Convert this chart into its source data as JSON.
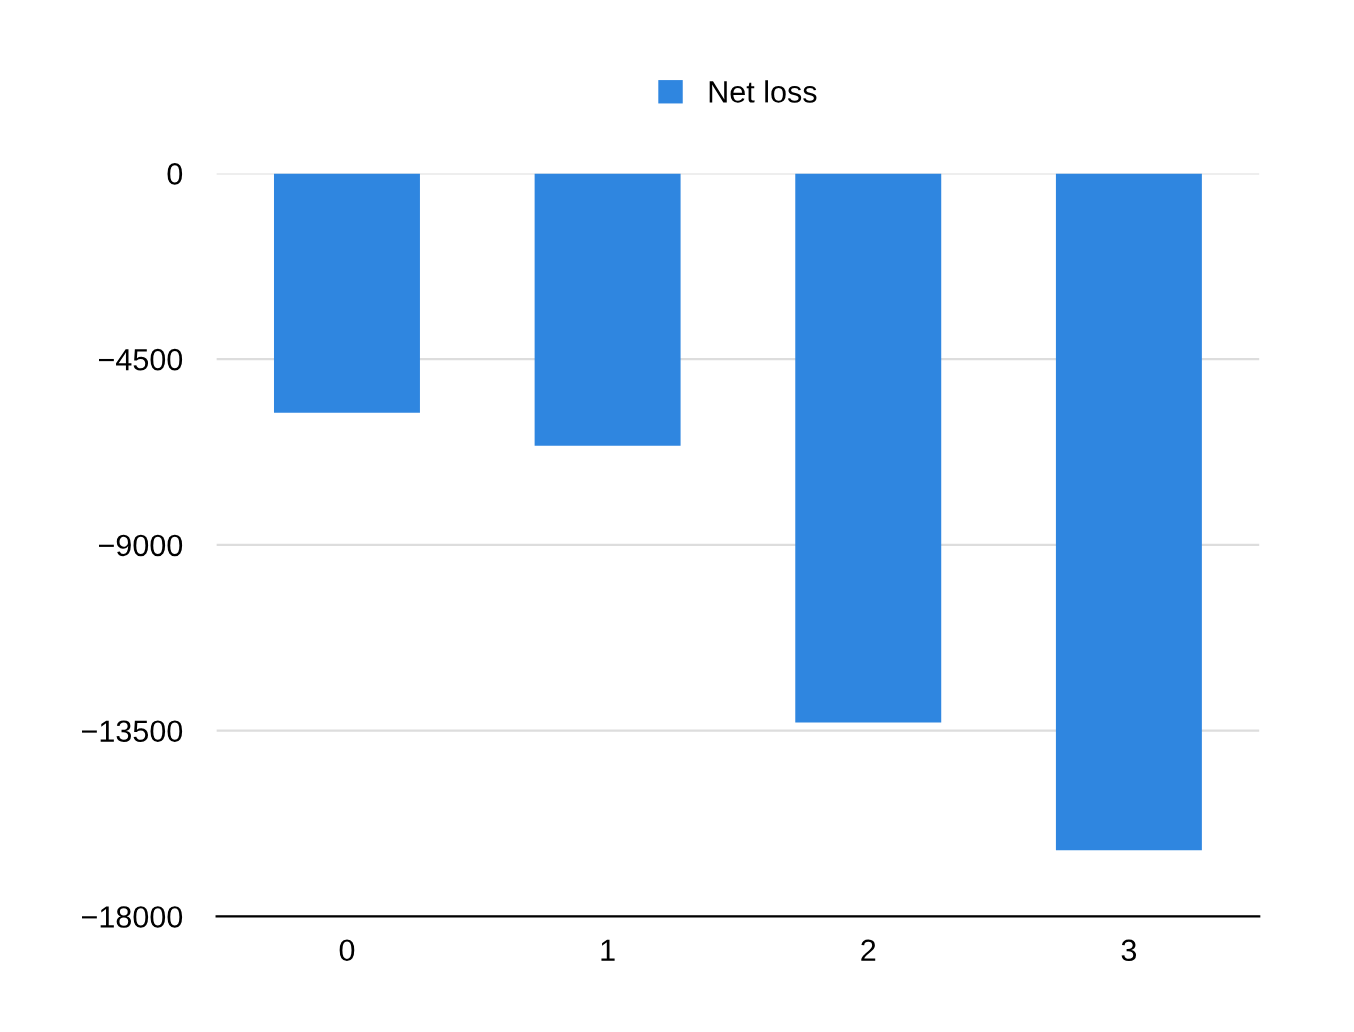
{
  "chart_data": {
    "type": "bar",
    "categories": [
      "0",
      "1",
      "2",
      "3"
    ],
    "series": [
      {
        "name": "Net loss",
        "color": "#2f86e0",
        "values": [
          -5800,
          -6600,
          -13300,
          -16400
        ]
      }
    ],
    "ylim": [
      -18000,
      0
    ],
    "yticks": [
      {
        "value": -18000,
        "label": "−18000"
      },
      {
        "value": -13500,
        "label": "−13500"
      },
      {
        "value": -9000,
        "label": "−9000"
      },
      {
        "value": -4500,
        "label": "−4500"
      },
      0
    ],
    "grid": "y",
    "legend": "top"
  }
}
